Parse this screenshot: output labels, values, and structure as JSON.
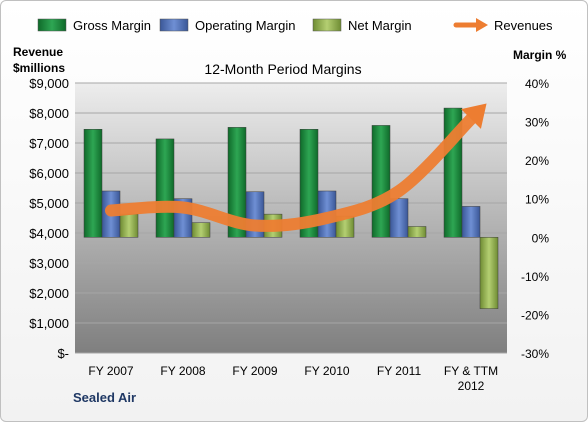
{
  "chart_data": {
    "type": "bar",
    "title": "12-Month Period Margins",
    "company": "Sealed Air",
    "categories": [
      "FY 2007",
      "FY 2008",
      "FY 2009",
      "FY 2010",
      "FY 2011",
      "FY & TTM 2012"
    ],
    "left_axis": {
      "label_line1": "Revenue",
      "label_line2": "$millions",
      "ylim": [
        0,
        9000
      ],
      "ticks": [
        "$-",
        "$1,000",
        "$2,000",
        "$3,000",
        "$4,000",
        "$5,000",
        "$6,000",
        "$7,000",
        "$8,000",
        "$9,000"
      ]
    },
    "right_axis": {
      "label": "Margin %",
      "ylim": [
        -30,
        40
      ],
      "ticks": [
        "-30%",
        "-20%",
        "-10%",
        "0%",
        "10%",
        "20%",
        "30%",
        "40%"
      ]
    },
    "series": [
      {
        "name": "Gross Margin",
        "axis": "right",
        "values": [
          28.0,
          25.5,
          28.5,
          28.0,
          29.0,
          33.5
        ],
        "color": "#1e8a3e"
      },
      {
        "name": "Operating Margin",
        "axis": "right",
        "values": [
          12.0,
          10.0,
          11.8,
          12.0,
          10.0,
          8.0
        ],
        "color": "#4f6fb8"
      },
      {
        "name": "Net Margin",
        "axis": "right",
        "values": [
          6.0,
          3.8,
          6.0,
          5.5,
          2.8,
          -18.5
        ],
        "color": "#8fb04a"
      },
      {
        "name": "Revenues",
        "axis": "left",
        "type": "line",
        "values": [
          4750,
          4850,
          4250,
          4500,
          5400,
          7800
        ],
        "color": "#ed7d31"
      }
    ],
    "grid": true,
    "legend_position": "top"
  }
}
